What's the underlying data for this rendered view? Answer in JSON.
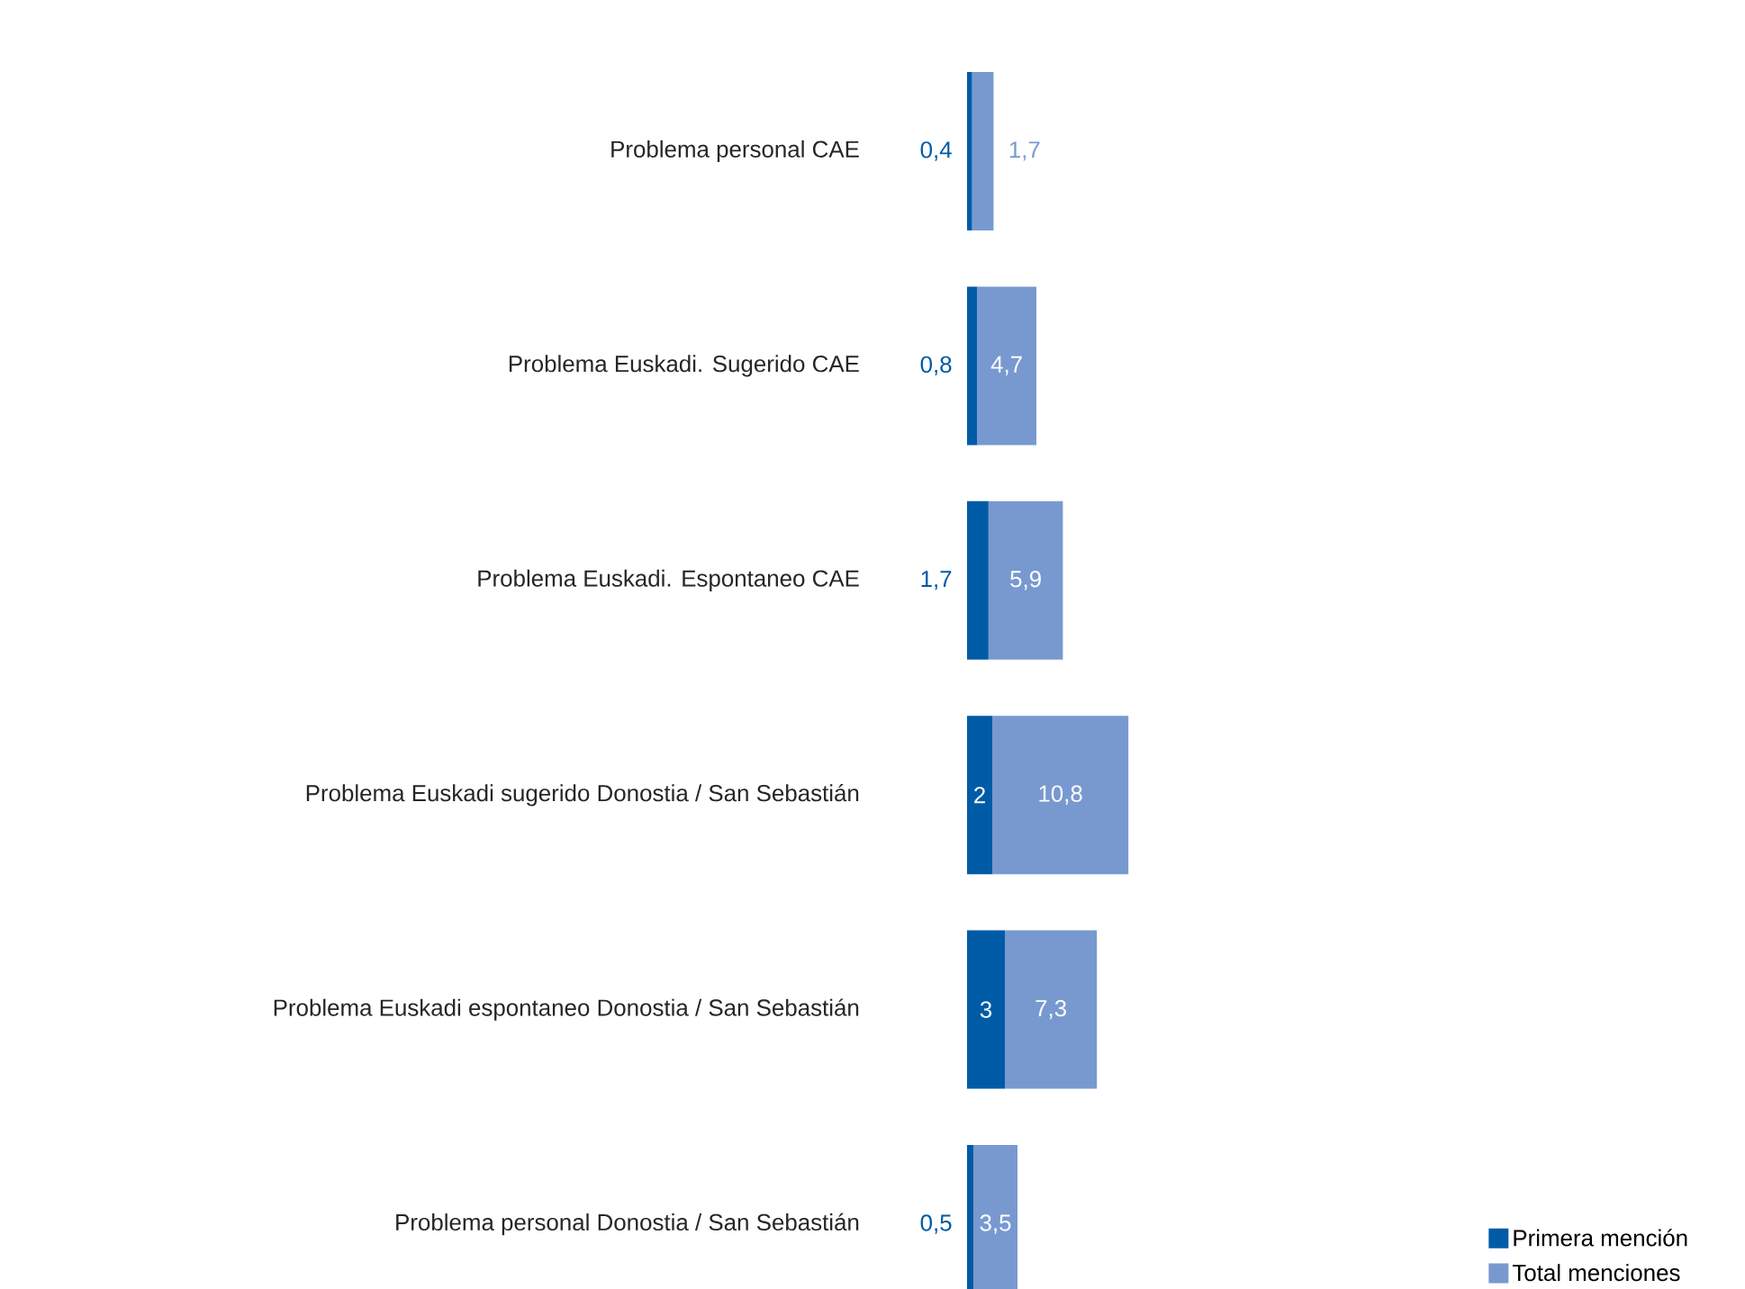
{
  "chart_data": {
    "type": "bar",
    "orientation": "horizontal",
    "stacked": true,
    "categories": [
      "Problema personal CAE",
      "Problema Euskadi. Sugerido CAE",
      "Problema Euskadi. Espontaneo CAE",
      "Problema Euskadi sugerido Donostia / San Sebastián",
      "Problema Euskadi espontaneo Donostia / San Sebastián",
      "Problema personal Donostia / San Sebastián"
    ],
    "series": [
      {
        "name": "Primera mención",
        "color": "#005ba6",
        "values": [
          0.4,
          0.8,
          1.7,
          2,
          3,
          0.5
        ],
        "value_labels": [
          "0,4",
          "0,8",
          "1,7",
          "2",
          "3",
          "0,5"
        ]
      },
      {
        "name": "Total menciones",
        "color": "#7899cf",
        "values": [
          1.7,
          4.7,
          5.9,
          10.8,
          7.3,
          3.5
        ],
        "value_labels": [
          "1,7",
          "4,7",
          "5,9",
          "10,8",
          "7,3",
          "3,5"
        ]
      }
    ],
    "legend": "bottom right"
  }
}
